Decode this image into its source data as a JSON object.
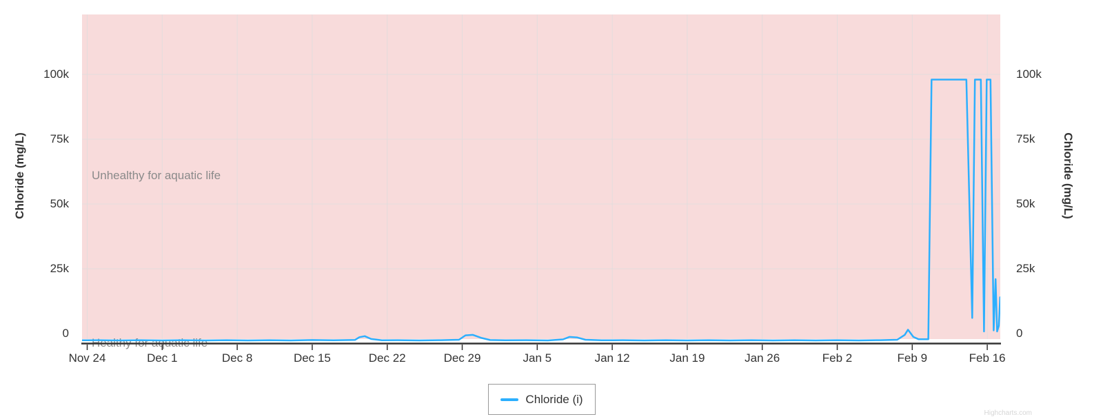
{
  "axes": {
    "left_title": "Chloride (mg/L)",
    "right_title": "Chloride (mg/L)"
  },
  "legend": {
    "label": "Chloride (i)"
  },
  "watermark": "Highcharts.com",
  "colors": {
    "series_blue": "#2caffe",
    "unhealthy_band_pink": "#f8dbdb",
    "gridline": "#dddddd",
    "axis_line": "#333333",
    "tick_text": "#333333",
    "band_label_gray": "#8a8a8a",
    "legend_border": "#999999"
  },
  "chart_data": {
    "type": "line",
    "title": "",
    "xlabel": "",
    "ylabel": "Chloride (mg/L)",
    "grid": true,
    "legend_position": "bottom-center",
    "x_ticklabels": [
      "Nov 24",
      "Dec 1",
      "Dec 8",
      "Dec 15",
      "Dec 22",
      "Dec 29",
      "Jan 5",
      "Jan 12",
      "Jan 19",
      "Jan 26",
      "Feb 2",
      "Feb 9",
      "Feb 16"
    ],
    "x_tick_days": [
      0,
      7,
      14,
      21,
      28,
      35,
      42,
      49,
      56,
      63,
      70,
      77,
      84
    ],
    "x_unit": "days since Nov 24",
    "xlim_days": [
      -0.48,
      85.2
    ],
    "y_ticklabels": [
      "0",
      "25k",
      "50k",
      "75k",
      "100k"
    ],
    "y_tickvalues": [
      0,
      25000,
      50000,
      75000,
      100000
    ],
    "ylim": [
      -3800,
      125500
    ],
    "plot_bands": [
      {
        "label": "Unhealthy for aquatic life",
        "color": "#f8dbdb"
      },
      {
        "label": "Healthy for aquatic life",
        "color": "#ffffff"
      }
    ],
    "series": [
      {
        "name": "Chloride (i)",
        "color": "#2caffe",
        "points": [
          [
            -0.48,
            -2600
          ],
          [
            1,
            -2550
          ],
          [
            3,
            -2650
          ],
          [
            5,
            -2550
          ],
          [
            7,
            -2650
          ],
          [
            9,
            -2550
          ],
          [
            11,
            -2650
          ],
          [
            13,
            -2550
          ],
          [
            15,
            -2650
          ],
          [
            17,
            -2550
          ],
          [
            19,
            -2650
          ],
          [
            21,
            -2500
          ],
          [
            23,
            -2600
          ],
          [
            25,
            -2450
          ],
          [
            25.4,
            -1400
          ],
          [
            25.9,
            -1000
          ],
          [
            26.5,
            -2100
          ],
          [
            27.5,
            -2600
          ],
          [
            29,
            -2550
          ],
          [
            31,
            -2650
          ],
          [
            33,
            -2550
          ],
          [
            34.7,
            -2400
          ],
          [
            35.3,
            -700
          ],
          [
            36.0,
            -500
          ],
          [
            36.8,
            -1700
          ],
          [
            37.6,
            -2500
          ],
          [
            39,
            -2600
          ],
          [
            41,
            -2550
          ],
          [
            43,
            -2650
          ],
          [
            44.4,
            -2250
          ],
          [
            45.0,
            -1300
          ],
          [
            45.7,
            -1500
          ],
          [
            46.5,
            -2400
          ],
          [
            48,
            -2600
          ],
          [
            50,
            -2550
          ],
          [
            52,
            -2650
          ],
          [
            54,
            -2550
          ],
          [
            56,
            -2650
          ],
          [
            58,
            -2550
          ],
          [
            60,
            -2650
          ],
          [
            62,
            -2550
          ],
          [
            64,
            -2650
          ],
          [
            66,
            -2550
          ],
          [
            68,
            -2650
          ],
          [
            70,
            -2550
          ],
          [
            72,
            -2650
          ],
          [
            74,
            -2550
          ],
          [
            75.6,
            -2400
          ],
          [
            76.3,
            -500
          ],
          [
            76.6,
            1500
          ],
          [
            77.1,
            -1300
          ],
          [
            77.6,
            -2200
          ],
          [
            78.5,
            -2200
          ],
          [
            78.8,
            98000
          ],
          [
            82.05,
            98000
          ],
          [
            82.6,
            6000
          ],
          [
            82.85,
            98000
          ],
          [
            83.4,
            98000
          ],
          [
            83.7,
            800
          ],
          [
            83.95,
            98000
          ],
          [
            84.3,
            98000
          ],
          [
            84.6,
            1200
          ],
          [
            84.78,
            21000
          ],
          [
            84.92,
            800
          ],
          [
            85.08,
            3000
          ],
          [
            85.2,
            14000
          ]
        ]
      }
    ]
  }
}
